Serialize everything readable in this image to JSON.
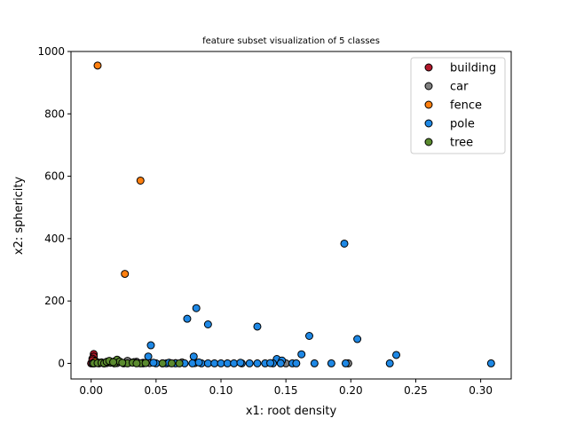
{
  "chart_data": {
    "type": "scatter",
    "title": "feature subset visualization of 5 classes",
    "xlabel": "x1: root density",
    "ylabel": "x2: sphericity",
    "xlim": [
      -0.0155,
      0.3235
    ],
    "ylim": [
      -50,
      1000
    ],
    "xticks": [
      0.0,
      0.05,
      0.1,
      0.15,
      0.2,
      0.25,
      0.3
    ],
    "xtick_labels": [
      "0.00",
      "0.05",
      "0.10",
      "0.15",
      "0.20",
      "0.25",
      "0.30"
    ],
    "yticks": [
      0,
      200,
      400,
      600,
      800,
      1000
    ],
    "ytick_labels": [
      "0",
      "200",
      "400",
      "600",
      "800",
      "1000"
    ],
    "grid": false,
    "legend_position": "top-right",
    "series": [
      {
        "name": "building",
        "color": "#b2182b",
        "points": [
          [
            0.002,
            30
          ],
          [
            0.002,
            22
          ],
          [
            0.001,
            15
          ],
          [
            0.003,
            8
          ],
          [
            0.001,
            4
          ],
          [
            0.004,
            2
          ],
          [
            0.002,
            0
          ],
          [
            0.0,
            0
          ],
          [
            0.003,
            1
          ],
          [
            0.005,
            3
          ],
          [
            0.001,
            10
          ],
          [
            0.006,
            0
          ]
        ]
      },
      {
        "name": "car",
        "color": "#808080",
        "points": [
          [
            0.001,
            0
          ],
          [
            0.003,
            2
          ],
          [
            0.005,
            1
          ],
          [
            0.008,
            3
          ],
          [
            0.01,
            0
          ],
          [
            0.012,
            4
          ],
          [
            0.015,
            2
          ],
          [
            0.02,
            1
          ],
          [
            0.025,
            0
          ],
          [
            0.03,
            3
          ],
          [
            0.035,
            5
          ],
          [
            0.04,
            2
          ],
          [
            0.045,
            1
          ],
          [
            0.055,
            0
          ],
          [
            0.06,
            2
          ],
          [
            0.07,
            3
          ],
          [
            0.08,
            1
          ],
          [
            0.15,
            0
          ],
          [
            0.198,
            0
          ],
          [
            0.018,
            6
          ],
          [
            0.028,
            8
          ],
          [
            0.033,
            4
          ],
          [
            0.065,
            1
          ],
          [
            0.012,
            1
          ]
        ]
      },
      {
        "name": "fence",
        "color": "#ff7f0e",
        "points": [
          [
            0.005,
            955
          ],
          [
            0.038,
            586
          ],
          [
            0.026,
            287
          ],
          [
            0.002,
            0
          ],
          [
            0.004,
            2
          ],
          [
            0.006,
            1
          ],
          [
            0.008,
            3
          ],
          [
            0.01,
            0
          ],
          [
            0.003,
            5
          ]
        ]
      },
      {
        "name": "pole",
        "color": "#1e88e5",
        "points": [
          [
            0.195,
            384
          ],
          [
            0.081,
            177
          ],
          [
            0.074,
            143
          ],
          [
            0.09,
            125
          ],
          [
            0.128,
            118
          ],
          [
            0.168,
            88
          ],
          [
            0.205,
            78
          ],
          [
            0.046,
            58
          ],
          [
            0.235,
            27
          ],
          [
            0.162,
            29
          ],
          [
            0.079,
            22
          ],
          [
            0.044,
            22
          ],
          [
            0.143,
            14
          ],
          [
            0.147,
            9
          ],
          [
            0.05,
            0
          ],
          [
            0.058,
            0
          ],
          [
            0.065,
            0
          ],
          [
            0.072,
            0
          ],
          [
            0.078,
            0
          ],
          [
            0.085,
            0
          ],
          [
            0.09,
            0
          ],
          [
            0.095,
            0
          ],
          [
            0.1,
            0
          ],
          [
            0.105,
            0
          ],
          [
            0.11,
            0
          ],
          [
            0.116,
            0
          ],
          [
            0.122,
            0
          ],
          [
            0.128,
            0
          ],
          [
            0.134,
            0
          ],
          [
            0.14,
            0
          ],
          [
            0.146,
            0
          ],
          [
            0.155,
            0
          ],
          [
            0.158,
            0
          ],
          [
            0.172,
            0
          ],
          [
            0.185,
            0
          ],
          [
            0.196,
            0
          ],
          [
            0.23,
            0
          ],
          [
            0.308,
            0
          ],
          [
            0.06,
            2
          ],
          [
            0.083,
            3
          ],
          [
            0.115,
            2
          ],
          [
            0.138,
            1
          ],
          [
            0.04,
            0
          ],
          [
            0.048,
            2
          ]
        ]
      },
      {
        "name": "tree",
        "color": "#5a8a2e",
        "points": [
          [
            0.002,
            0
          ],
          [
            0.005,
            1
          ],
          [
            0.008,
            2
          ],
          [
            0.01,
            0
          ],
          [
            0.012,
            5
          ],
          [
            0.015,
            3
          ],
          [
            0.018,
            0
          ],
          [
            0.02,
            12
          ],
          [
            0.022,
            6
          ],
          [
            0.025,
            1
          ],
          [
            0.028,
            0
          ],
          [
            0.032,
            2
          ],
          [
            0.038,
            0
          ],
          [
            0.042,
            1
          ],
          [
            0.055,
            0
          ],
          [
            0.062,
            0
          ],
          [
            0.068,
            0
          ],
          [
            0.014,
            8
          ],
          [
            0.017,
            4
          ],
          [
            0.024,
            2
          ],
          [
            0.035,
            0
          ]
        ]
      }
    ]
  }
}
